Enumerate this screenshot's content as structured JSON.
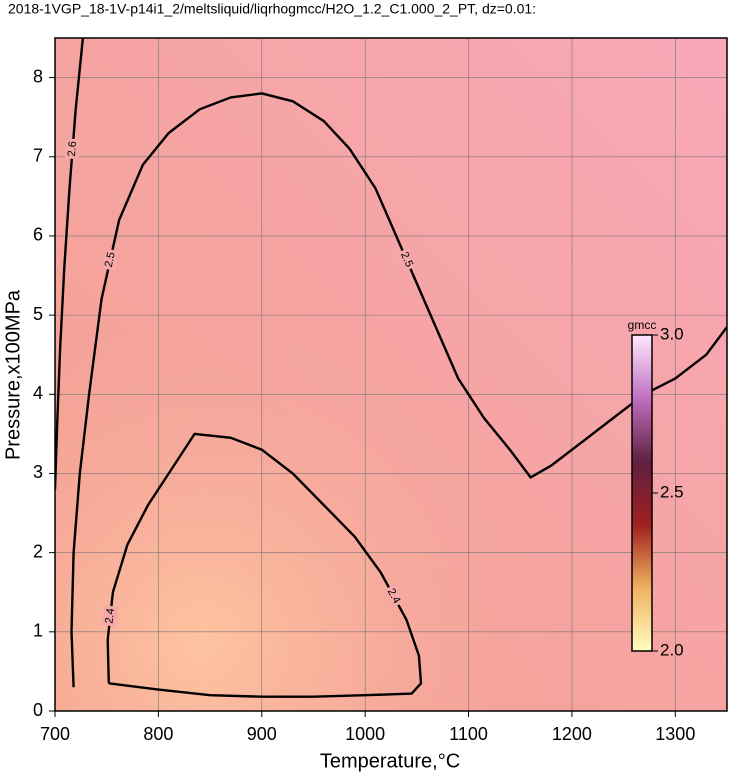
{
  "chart_data": {
    "type": "contour",
    "title": "2018-1VGP_18-1V-p14i1_2/meltsliquid/liqrhogmcc/H2O_1.2_C1.000_2_PT, dz=0.01:",
    "x_label": "Temperature,°C",
    "y_label": "Pressure,x100MPa",
    "xlim": [
      700,
      1350
    ],
    "ylim": [
      0,
      8.5
    ],
    "xticks": [
      700,
      800,
      900,
      1000,
      1100,
      1200,
      1300
    ],
    "yticks": [
      0,
      1,
      2,
      3,
      4,
      5,
      6,
      7,
      8
    ],
    "grid": true,
    "contours": [
      {
        "level": 2.6,
        "x": [
          727,
          720,
          714,
          709,
          705,
          702,
          700
        ],
        "y": [
          8.5,
          7.6,
          6.6,
          5.6,
          4.6,
          3.6,
          2.8
        ]
      },
      {
        "level": 2.5,
        "x": [
          718,
          716,
          718,
          724,
          733,
          745,
          762,
          785,
          810,
          840,
          870,
          900,
          930,
          960,
          985,
          1010,
          1030,
          1050,
          1070,
          1090,
          1115,
          1140,
          1160,
          1180,
          1210,
          1240,
          1270,
          1300,
          1330,
          1350
        ],
        "y": [
          0.3,
          1.0,
          2.0,
          3.0,
          4.0,
          5.2,
          6.2,
          6.9,
          7.3,
          7.6,
          7.75,
          7.8,
          7.7,
          7.45,
          7.1,
          6.6,
          6.0,
          5.4,
          4.8,
          4.2,
          3.7,
          3.3,
          2.95,
          3.1,
          3.4,
          3.7,
          4.0,
          4.2,
          4.5,
          4.85
        ]
      },
      {
        "level": 2.4,
        "x": [
          752,
          751,
          756,
          770,
          790,
          810,
          835,
          870,
          900,
          930,
          960,
          990,
          1015,
          1040,
          1052,
          1054,
          1045,
          1000,
          950,
          900,
          850,
          800,
          770,
          752
        ],
        "y": [
          0.35,
          0.9,
          1.5,
          2.1,
          2.6,
          3.0,
          3.5,
          3.45,
          3.3,
          3.0,
          2.6,
          2.2,
          1.75,
          1.15,
          0.7,
          0.35,
          0.22,
          0.2,
          0.18,
          0.18,
          0.2,
          0.27,
          0.32,
          0.35
        ]
      }
    ],
    "colorbar": {
      "label": "gmcc",
      "lim": [
        2,
        3
      ],
      "ticks": [
        {
          "value": 2,
          "label": "2.0"
        },
        2.5,
        {
          "value": 3,
          "label": "3.0"
        }
      ],
      "colors": [
        "#ffffc0",
        "#f0b060",
        "#a02020",
        "#602040",
        "#c070c0",
        "#ffe8ff"
      ]
    }
  }
}
